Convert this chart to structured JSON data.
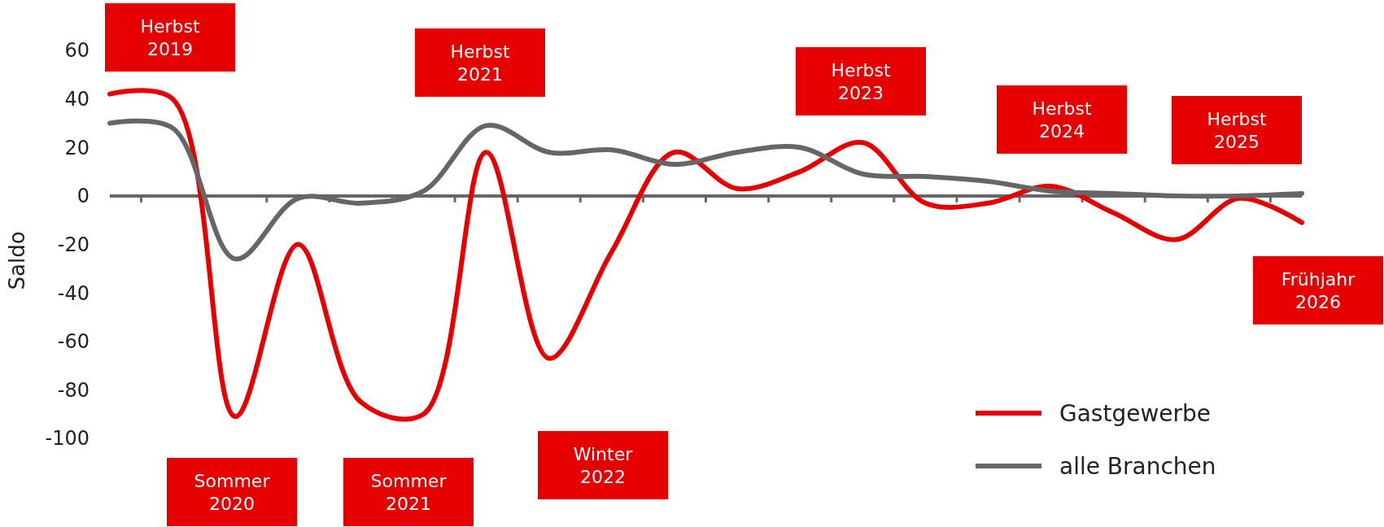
{
  "chart_data": {
    "type": "line",
    "ylabel": "Saldo",
    "categories": [
      null,
      null,
      null,
      null,
      null,
      null,
      null,
      null,
      null,
      null,
      null,
      null,
      null,
      null,
      null,
      null,
      null,
      null,
      null,
      null
    ],
    "series": [
      {
        "name": "Gastgewerbe",
        "color": "#e60000",
        "values": [
          42,
          40,
          -91,
          -20,
          -85,
          -90,
          18,
          -67,
          -23,
          18,
          3,
          10,
          22,
          -3,
          -3,
          4,
          -7,
          -18,
          -1,
          -11
        ]
      },
      {
        "name": "alle Branchen",
        "color": "#666666",
        "values": [
          30,
          28,
          -26,
          -1,
          -3,
          2,
          29,
          18,
          19,
          13,
          18,
          20,
          9,
          8,
          6,
          2,
          1,
          0,
          0,
          1
        ]
      }
    ],
    "ylim": [
      -100,
      60
    ],
    "yticks": [
      -100,
      -80,
      -60,
      -40,
      -20,
      0,
      20,
      40,
      60
    ],
    "legend": "bottom right",
    "line_style": "solid",
    "marker": "none",
    "annotations": [
      "Herbst\n2019",
      "Sommer\n2020",
      "Sommer\n2021",
      "Herbst\n2021",
      "Winter\n2022",
      "Herbst\n2023",
      "Herbst\n2024",
      "Herbst\n2025",
      "Frühjahr\n2026"
    ]
  }
}
